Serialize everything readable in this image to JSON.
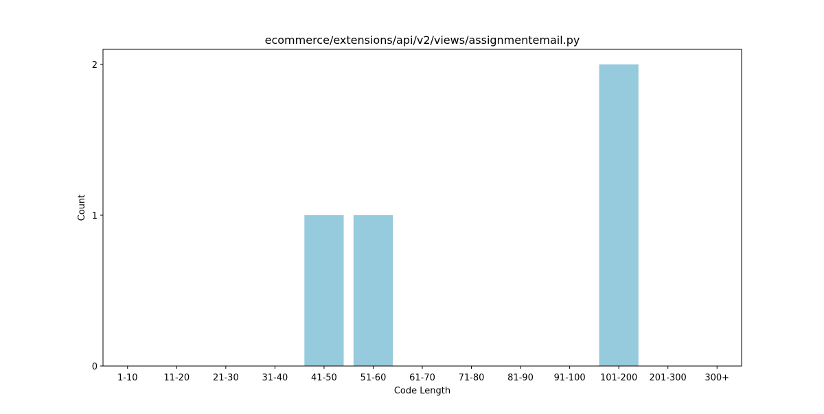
{
  "chart_data": {
    "type": "bar",
    "title": "ecommerce/extensions/api/v2/views/assignmentemail.py",
    "xlabel": "Code Length",
    "ylabel": "Count",
    "categories": [
      "1-10",
      "11-20",
      "21-30",
      "31-40",
      "41-50",
      "51-60",
      "61-70",
      "71-80",
      "81-90",
      "91-100",
      "101-200",
      "201-300",
      "300+"
    ],
    "values": [
      0,
      0,
      0,
      0,
      1,
      1,
      0,
      0,
      0,
      0,
      2,
      0,
      0
    ],
    "ylim": [
      0,
      2.1
    ],
    "yticks": [
      0,
      1,
      2
    ],
    "grid": false,
    "bar_color": "#96cadd"
  }
}
